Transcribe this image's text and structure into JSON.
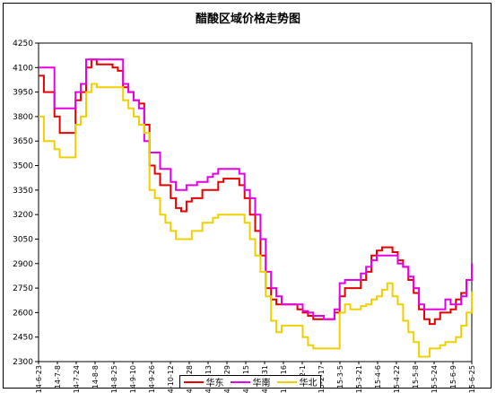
{
  "chart_data": {
    "type": "line",
    "title": "醋酸区域价格走势图",
    "xlabel": "",
    "ylabel": "",
    "ylim": [
      2300,
      4250
    ],
    "yticks": [
      2300,
      2450,
      2600,
      2750,
      2900,
      3050,
      3200,
      3350,
      3500,
      3650,
      3800,
      3950,
      4100,
      4250
    ],
    "x_tick_labels": [
      "14-6-23",
      "14-7-8",
      "14-7-24",
      "14-8-8",
      "14-8-25",
      "14-9-10",
      "14-9-26",
      "14-10-12",
      "14-10-28",
      "14-11-13",
      "14-11-29",
      "14-12-15",
      "14-12-31",
      "15-1-16",
      "15-2-1",
      "15-2-17",
      "15-3-5",
      "15-3-21",
      "15-4-6",
      "15-4-22",
      "15-5-8",
      "15-5-24",
      "15-6-9",
      "15-6-25"
    ],
    "grid": false,
    "legend_position": "bottom",
    "series": [
      {
        "name": "华东",
        "color": "#e60000",
        "values": [
          4050,
          3950,
          3950,
          3800,
          3700,
          3700,
          3700,
          3900,
          3950,
          4100,
          4150,
          4120,
          4120,
          4120,
          4100,
          4080,
          3980,
          3950,
          3900,
          3880,
          3750,
          3500,
          3450,
          3380,
          3380,
          3300,
          3240,
          3220,
          3280,
          3300,
          3300,
          3350,
          3350,
          3350,
          3400,
          3420,
          3420,
          3420,
          3380,
          3300,
          3200,
          3100,
          2950,
          2750,
          2680,
          2650,
          2650,
          2650,
          2650,
          2620,
          2600,
          2580,
          2560,
          2560,
          2560,
          2560,
          2600,
          2700,
          2750,
          2750,
          2750,
          2800,
          2850,
          2950,
          2980,
          3000,
          3000,
          2970,
          2920,
          2880,
          2800,
          2720,
          2620,
          2560,
          2530,
          2560,
          2600,
          2600,
          2620,
          2680,
          2720,
          2800,
          2900
        ]
      },
      {
        "name": "华南",
        "color": "#e600e6",
        "values": [
          4100,
          4100,
          4100,
          3850,
          3850,
          3850,
          3850,
          3950,
          4000,
          4150,
          4150,
          4150,
          4150,
          4150,
          4150,
          4150,
          4000,
          3950,
          3900,
          3850,
          3650,
          3580,
          3580,
          3480,
          3480,
          3400,
          3350,
          3350,
          3380,
          3380,
          3400,
          3400,
          3430,
          3450,
          3480,
          3480,
          3480,
          3480,
          3450,
          3350,
          3300,
          3200,
          3050,
          2850,
          2750,
          2700,
          2650,
          2650,
          2650,
          2650,
          2610,
          2600,
          2580,
          2580,
          2560,
          2560,
          2620,
          2780,
          2800,
          2800,
          2800,
          2840,
          2880,
          2920,
          2950,
          2950,
          2950,
          2950,
          2900,
          2880,
          2820,
          2750,
          2650,
          2620,
          2620,
          2620,
          2620,
          2680,
          2650,
          2650,
          2700,
          2800,
          2900
        ]
      },
      {
        "name": "华北",
        "color": "#f0d000",
        "values": [
          3800,
          3650,
          3650,
          3600,
          3550,
          3550,
          3550,
          3750,
          3800,
          3950,
          4000,
          3980,
          3980,
          3980,
          3980,
          3980,
          3900,
          3850,
          3800,
          3750,
          3700,
          3350,
          3300,
          3200,
          3150,
          3100,
          3050,
          3050,
          3050,
          3100,
          3100,
          3150,
          3150,
          3180,
          3200,
          3200,
          3200,
          3200,
          3200,
          3150,
          3050,
          2950,
          2850,
          2700,
          2550,
          2480,
          2520,
          2520,
          2520,
          2520,
          2450,
          2400,
          2380,
          2380,
          2380,
          2380,
          2380,
          2600,
          2650,
          2620,
          2620,
          2640,
          2650,
          2680,
          2700,
          2740,
          2780,
          2700,
          2650,
          2550,
          2480,
          2420,
          2330,
          2330,
          2380,
          2380,
          2400,
          2420,
          2420,
          2450,
          2520,
          2600,
          2730
        ]
      }
    ]
  }
}
